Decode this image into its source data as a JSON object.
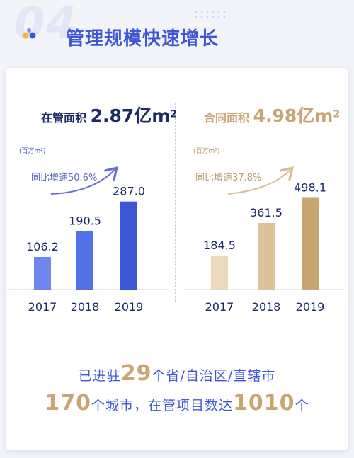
{
  "header": {
    "section_number": "04",
    "title": "管理规模快速增长"
  },
  "left_panel": {
    "title_label": "在管面积",
    "title_value": "2.87亿m",
    "title_sup": "2",
    "unit": "(百万m²)",
    "growth": "同比增速50.6%"
  },
  "right_panel": {
    "title_label": "合同面积",
    "title_value": "4.98亿m",
    "title_sup": "2",
    "unit": "(百万m²)",
    "growth": "同比增速37.8%"
  },
  "summary": {
    "line1_pre": "已进驻",
    "line1_num": "29",
    "line1_post": "个省/自治区/直辖市",
    "line2_num1": "170",
    "line2_mid": "个城市，在管项目数达",
    "line2_num2": "1010",
    "line2_post": "个"
  },
  "colors": {
    "blue": "#3f57d6",
    "gold": "#c8a571",
    "navy": "#1c2b66"
  },
  "chart_data": [
    {
      "type": "bar",
      "categories": [
        "2017",
        "2018",
        "2019"
      ],
      "values": [
        106.2,
        190.5,
        287.0
      ],
      "value_labels": [
        "106.2",
        "190.5",
        "287.0"
      ],
      "title": "在管面积 2.87亿m²",
      "ylabel": "(百万m²)",
      "annotation": "同比增速50.6%",
      "ylim": [
        0,
        300
      ],
      "grid": false,
      "colors": [
        "#6f86f0",
        "#5470e6",
        "#3f57d6"
      ]
    },
    {
      "type": "bar",
      "categories": [
        "2017",
        "2018",
        "2019"
      ],
      "values": [
        184.5,
        361.5,
        498.1
      ],
      "value_labels": [
        "184.5",
        "361.5",
        "498.1"
      ],
      "title": "合同面积 4.98亿m²",
      "ylabel": "(百万m²)",
      "annotation": "同比增速37.8%",
      "ylim": [
        0,
        500
      ],
      "grid": false,
      "colors": [
        "#ead9bd",
        "#dcc39b",
        "#c8a571"
      ]
    }
  ]
}
